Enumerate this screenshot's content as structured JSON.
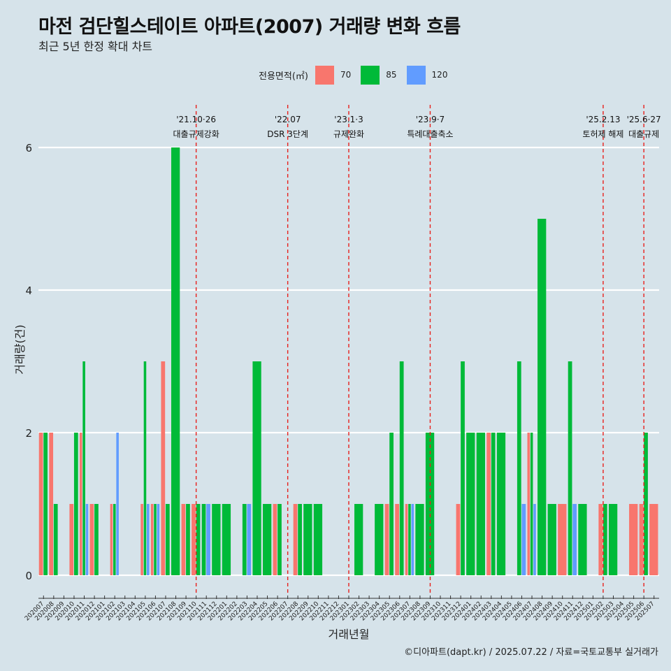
{
  "header": {
    "title": "마전 검단힐스테이트 아파트(2007) 거래량 변화 흐름",
    "subtitle": "최근 5년 한정 확대 차트"
  },
  "legend": {
    "title": "전용면적(㎡)",
    "items": [
      {
        "label": "70",
        "color": "#F8766D"
      },
      {
        "label": "85",
        "color": "#00BA38"
      },
      {
        "label": "120",
        "color": "#619CFF"
      }
    ]
  },
  "caption": "©디아파트(dapt.kr) / 2025.07.22 / 자료=국토교통부 실거래가",
  "chart_data": {
    "type": "bar",
    "title": "마전 검단힐스테이트 아파트(2007) 거래량 변화 흐름",
    "subtitle": "최근 5년 한정 확대 차트",
    "xlabel": "거래년월",
    "ylabel": "거래량(건)",
    "ylim": [
      0,
      6
    ],
    "yticks": [
      0,
      2,
      4,
      6
    ],
    "grid": "horizontal",
    "legend_position": "top",
    "categories": [
      "202007",
      "202008",
      "202009",
      "202010",
      "202011",
      "202012",
      "202101",
      "202102",
      "202103",
      "202104",
      "202105",
      "202106",
      "202107",
      "202108",
      "202109",
      "202110",
      "202111",
      "202112",
      "202201",
      "202202",
      "202203",
      "202204",
      "202205",
      "202206",
      "202207",
      "202208",
      "202209",
      "202210",
      "202211",
      "202212",
      "202301",
      "202302",
      "202303",
      "202304",
      "202305",
      "202306",
      "202307",
      "202308",
      "202309",
      "202310",
      "202311",
      "202312",
      "202401",
      "202402",
      "202403",
      "202404",
      "202405",
      "202406",
      "202407",
      "202408",
      "202409",
      "202410",
      "202411",
      "202412",
      "202501",
      "202502",
      "202503",
      "202504",
      "202505",
      "202506",
      "202507"
    ],
    "series": [
      {
        "name": "70",
        "color": "#F8766D",
        "values": [
          2,
          2,
          0,
          1,
          2,
          1,
          0,
          1,
          0,
          0,
          1,
          1,
          3,
          0,
          1,
          1,
          0,
          0,
          0,
          0,
          0,
          0,
          0,
          1,
          0,
          1,
          0,
          0,
          0,
          0,
          0,
          0,
          0,
          0,
          1,
          1,
          1,
          0,
          0,
          0,
          0,
          1,
          0,
          0,
          2,
          0,
          0,
          0,
          2,
          0,
          0,
          1,
          0,
          0,
          0,
          1,
          0,
          0,
          1,
          1,
          1
        ]
      },
      {
        "name": "85",
        "color": "#00BA38",
        "values": [
          2,
          1,
          0,
          2,
          3,
          1,
          0,
          1,
          0,
          0,
          3,
          1,
          1,
          6,
          1,
          1,
          1,
          1,
          1,
          0,
          1,
          3,
          1,
          1,
          0,
          1,
          1,
          1,
          0,
          0,
          0,
          1,
          0,
          1,
          2,
          3,
          1,
          1,
          2,
          0,
          0,
          3,
          2,
          2,
          2,
          2,
          0,
          3,
          2,
          5,
          1,
          0,
          3,
          1,
          0,
          1,
          1,
          0,
          0,
          2,
          0
        ]
      },
      {
        "name": "120",
        "color": "#619CFF",
        "values": [
          0,
          0,
          0,
          0,
          1,
          0,
          0,
          2,
          0,
          0,
          1,
          1,
          0,
          0,
          0,
          0,
          1,
          0,
          0,
          0,
          1,
          0,
          0,
          0,
          0,
          0,
          0,
          0,
          0,
          0,
          0,
          0,
          0,
          0,
          0,
          0,
          1,
          0,
          0,
          0,
          0,
          0,
          0,
          0,
          0,
          0,
          0,
          1,
          1,
          0,
          0,
          0,
          1,
          0,
          0,
          0,
          0,
          0,
          0,
          0,
          0
        ]
      }
    ],
    "annotations": [
      {
        "x": "202110",
        "label1": "'21.10·26",
        "label2": "대출규제강화"
      },
      {
        "x": "202207",
        "label1": "'22.07",
        "label2": "DSR 3단계"
      },
      {
        "x": "202301",
        "label1": "'23.1·3",
        "label2": "규제완화"
      },
      {
        "x": "202309",
        "label1": "'23.9·7",
        "label2": "특례대출축소"
      },
      {
        "x": "202502",
        "label1": "'25.2.13",
        "label2": "토허제 해제"
      },
      {
        "x": "202506",
        "label1": "'25.6·27",
        "label2": "대출규제"
      }
    ]
  }
}
